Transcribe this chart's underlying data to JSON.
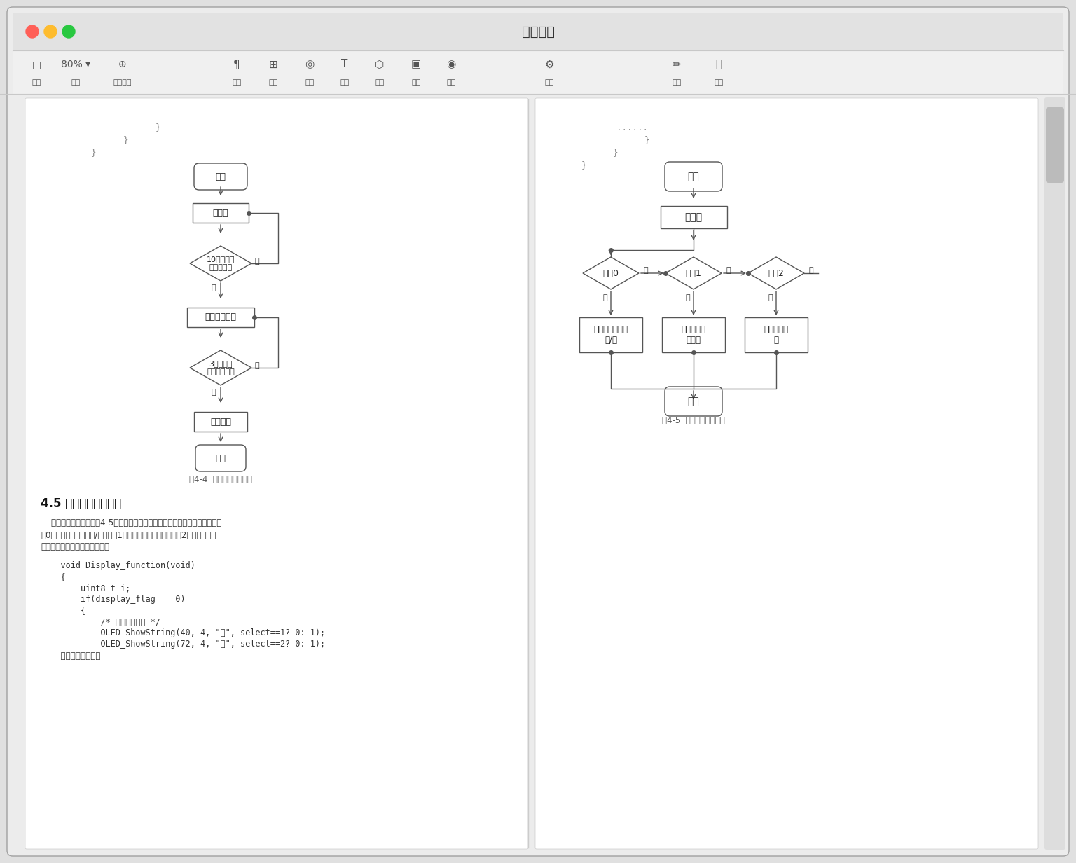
{
  "title": "软件设计",
  "bg_color": "#e0e0e0",
  "fig4_caption": "图4-4  处理函数子流程图",
  "fig5_caption": "图4-5  显示函数子流程图",
  "section_title": "4.5 显示函数流程设计",
  "body_text_lines": [
    "    显示函数子流程图如图4-5所示；根据不同的显示函数数显示不同的界面，界",
    "面0，显示当前的选择存/取；界面1，显示存储柜的选择；界面2，显示存取密",
    "码。其部分程序源码如下所示："
  ],
  "code_lines": [
    "    void Display_function(void)",
    "    {",
    "        uint8_t i;",
    "        if(display_flag == 0)",
    "        {",
    "            /* 显示当前选择 */",
    "            OLED_ShowString(40, 4, \"存\", select==1? 0: 1);",
    "            OLED_ShowString(72, 4, \"取\", select==2? 0: 1);",
    "    （部分代码省略）"
  ],
  "left_braces": [
    "            }",
    "        }",
    "    }"
  ],
  "right_braces": [
    "......",
    "        }",
    "    }",
    "}"
  ]
}
